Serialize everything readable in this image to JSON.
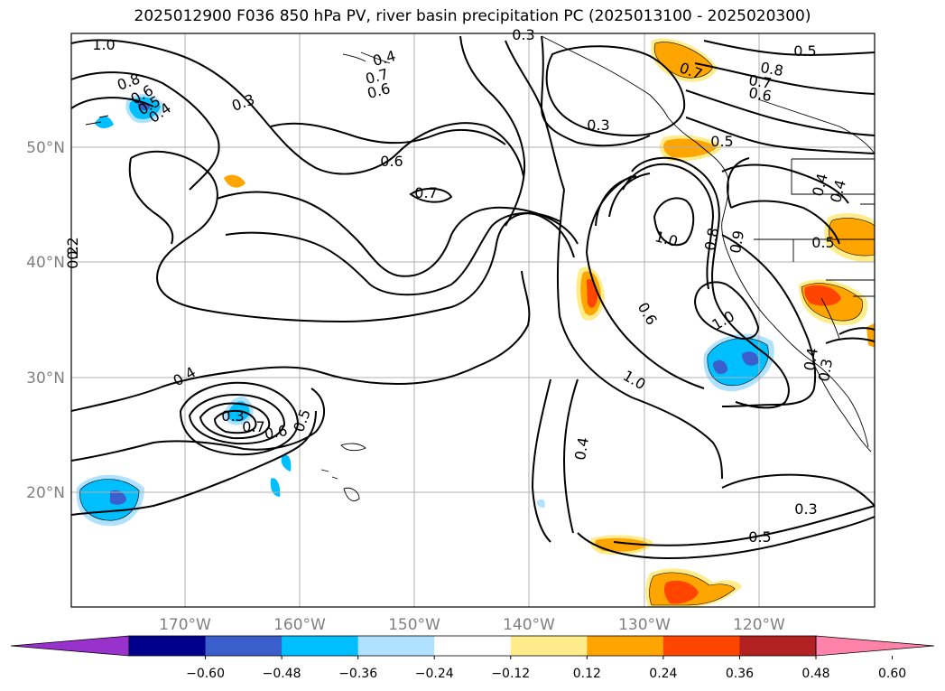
{
  "title": "2025012900 F036 850 hPa PV, river basin precipitation PC (2025013100 - 2025020300)",
  "map": {
    "lat_labels": [
      "50°N",
      "40°N",
      "30°N",
      "20°N"
    ],
    "lon_labels": [
      "170°W",
      "160°W",
      "150°W",
      "140°W",
      "130°W",
      "120°W"
    ],
    "contour_labels": [
      "1.0",
      "0.8",
      "0.6",
      "0.5",
      "0.4",
      "0.3",
      "0.4",
      "0.7",
      "0.6",
      "0.3",
      "0.7",
      "0.8",
      "0.7",
      "0.6",
      "0.5",
      "0.3",
      "0.5",
      "1.0",
      "0.6",
      "0.7",
      "0.4",
      "0.4",
      "0.9",
      "0.5",
      "1.0",
      "0.8",
      "0.6",
      "1.0",
      "0.4",
      "0.3",
      "0.4",
      "0.3",
      "0.7",
      "0.6",
      "0.5",
      "0.4",
      "0.3",
      "0.5",
      "0.2",
      "0.2"
    ]
  },
  "colorbar": {
    "ticks": [
      "−0.60",
      "−0.48",
      "−0.36",
      "−0.24",
      "−0.12",
      "0.12",
      "0.24",
      "0.36",
      "0.48",
      "0.60"
    ],
    "colors": [
      "#9932cc",
      "#00008b",
      "#3a5fcd",
      "#00bfff",
      "#b0e2ff",
      "#ffffff",
      "#ffec8b",
      "#ffa500",
      "#ff4500",
      "#b22222",
      "#ff82ab"
    ]
  }
}
